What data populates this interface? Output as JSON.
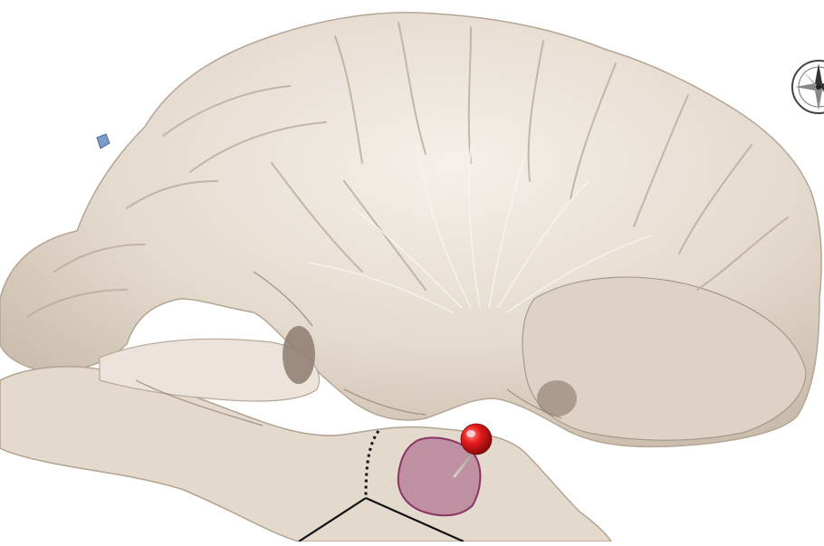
{
  "image": {
    "subject": "brain-specimen-sagittal-dissection",
    "colors": {
      "tissue": "#e6ddd3",
      "tissue_shadow": "#b9ab9c",
      "tissue_highlight": "#f7f3ee",
      "highlight_region": "#a3537e",
      "pin_head": "#e02020",
      "annotation_line": "#111111",
      "background": "#ffffff"
    }
  },
  "controls": {
    "compass_icon": "compass-rose-icon",
    "pin_icon": "map-pin-icon"
  }
}
